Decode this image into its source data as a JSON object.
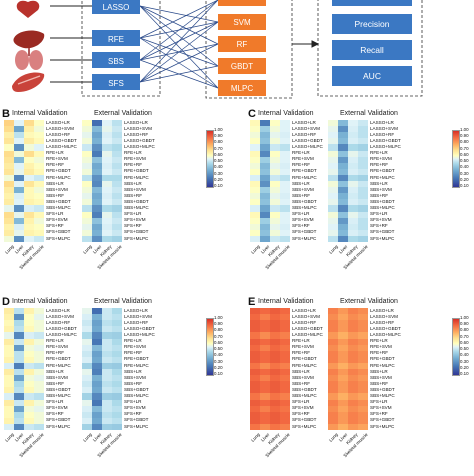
{
  "flow": {
    "methods": [
      "LASSO",
      "RFE",
      "SBS",
      "SFS"
    ],
    "models": [
      "SVM",
      "RF",
      "GBDT",
      "MLPC"
    ],
    "metrics": [
      "Precision",
      "Recall",
      "AUC"
    ]
  },
  "colorbar_ticks": [
    "1.00",
    "0.90",
    "0.80",
    "0.70",
    "0.60",
    "0.50",
    "0.40",
    "0.30",
    "0.20",
    "0.10"
  ],
  "chart_data": [
    {
      "type": "heatmap",
      "panel": "B",
      "titles": [
        "Internal Validation",
        "External Validation"
      ],
      "x": [
        "Lung",
        "Liver",
        "Kidney",
        "Skeletal muscle"
      ],
      "y": [
        "LASSO+LR",
        "LASSO+SVM",
        "LASSO+RF",
        "LASSO+GBDT",
        "LASSO+MLPC",
        "RFE+LR",
        "RFE+SVM",
        "RFE+RF",
        "RFE+GBDT",
        "RFE+MLPC",
        "SBS+LR",
        "SBS+SVM",
        "SBS+RF",
        "SBS+GBDT",
        "SBS+MLPC",
        "SFS+LR",
        "SFS+SVM",
        "SFS+RF",
        "SFS+GBDT",
        "SFS+MLPC"
      ],
      "vrange": [
        0.1,
        1.0
      ],
      "internal": [
        [
          0.72,
          0.55,
          0.7,
          0.6
        ],
        [
          0.7,
          0.35,
          0.65,
          0.58
        ],
        [
          0.65,
          0.5,
          0.62,
          0.6
        ],
        [
          0.68,
          0.55,
          0.66,
          0.62
        ],
        [
          0.6,
          0.3,
          0.58,
          0.55
        ],
        [
          0.7,
          0.58,
          0.7,
          0.62
        ],
        [
          0.68,
          0.4,
          0.6,
          0.58
        ],
        [
          0.66,
          0.55,
          0.64,
          0.6
        ],
        [
          0.68,
          0.56,
          0.66,
          0.62
        ],
        [
          0.58,
          0.28,
          0.55,
          0.52
        ],
        [
          0.7,
          0.55,
          0.68,
          0.62
        ],
        [
          0.66,
          0.38,
          0.62,
          0.58
        ],
        [
          0.64,
          0.54,
          0.62,
          0.6
        ],
        [
          0.66,
          0.55,
          0.64,
          0.62
        ],
        [
          0.56,
          0.3,
          0.54,
          0.52
        ],
        [
          0.7,
          0.56,
          0.68,
          0.62
        ],
        [
          0.68,
          0.4,
          0.64,
          0.58
        ],
        [
          0.64,
          0.54,
          0.62,
          0.6
        ],
        [
          0.66,
          0.56,
          0.64,
          0.62
        ],
        [
          0.58,
          0.3,
          0.55,
          0.52
        ]
      ],
      "external": [
        [
          0.6,
          0.22,
          0.55,
          0.5
        ],
        [
          0.58,
          0.4,
          0.56,
          0.52
        ],
        [
          0.56,
          0.35,
          0.54,
          0.5
        ],
        [
          0.58,
          0.38,
          0.55,
          0.52
        ],
        [
          0.52,
          0.3,
          0.5,
          0.48
        ],
        [
          0.6,
          0.25,
          0.56,
          0.5
        ],
        [
          0.58,
          0.42,
          0.55,
          0.52
        ],
        [
          0.56,
          0.36,
          0.54,
          0.5
        ],
        [
          0.58,
          0.38,
          0.55,
          0.52
        ],
        [
          0.5,
          0.3,
          0.48,
          0.48
        ],
        [
          0.6,
          0.28,
          0.56,
          0.5
        ],
        [
          0.58,
          0.4,
          0.55,
          0.52
        ],
        [
          0.56,
          0.36,
          0.54,
          0.5
        ],
        [
          0.58,
          0.38,
          0.55,
          0.52
        ],
        [
          0.5,
          0.3,
          0.48,
          0.46
        ],
        [
          0.6,
          0.26,
          0.56,
          0.5
        ],
        [
          0.58,
          0.42,
          0.55,
          0.52
        ],
        [
          0.56,
          0.36,
          0.54,
          0.5
        ],
        [
          0.58,
          0.38,
          0.55,
          0.52
        ],
        [
          0.5,
          0.3,
          0.48,
          0.46
        ]
      ]
    },
    {
      "type": "heatmap",
      "panel": "C",
      "titles": [
        "Internal Validation",
        "External Validation"
      ],
      "x": [
        "Lung",
        "Liver",
        "Kidney",
        "Skeletal muscle"
      ],
      "y": [
        "LASSO+LR",
        "LASSO+SVM",
        "LASSO+RF",
        "LASSO+GBDT",
        "LASSO+MLPC",
        "RFE+LR",
        "RFE+SVM",
        "RFE+RF",
        "RFE+GBDT",
        "RFE+MLPC",
        "SBS+LR",
        "SBS+SVM",
        "SBS+RF",
        "SBS+GBDT",
        "SBS+MLPC",
        "SFS+LR",
        "SFS+SVM",
        "SFS+RF",
        "SFS+GBDT",
        "SFS+MLPC"
      ],
      "vrange": [
        0.1,
        1.0
      ],
      "internal": [
        [
          0.62,
          0.25,
          0.6,
          0.55
        ],
        [
          0.6,
          0.45,
          0.58,
          0.55
        ],
        [
          0.58,
          0.4,
          0.56,
          0.54
        ],
        [
          0.6,
          0.42,
          0.58,
          0.55
        ],
        [
          0.55,
          0.35,
          0.52,
          0.5
        ],
        [
          0.62,
          0.28,
          0.6,
          0.55
        ],
        [
          0.6,
          0.45,
          0.58,
          0.55
        ],
        [
          0.58,
          0.4,
          0.56,
          0.54
        ],
        [
          0.6,
          0.42,
          0.58,
          0.55
        ],
        [
          0.54,
          0.35,
          0.52,
          0.5
        ],
        [
          0.62,
          0.3,
          0.6,
          0.55
        ],
        [
          0.6,
          0.45,
          0.58,
          0.55
        ],
        [
          0.58,
          0.4,
          0.56,
          0.54
        ],
        [
          0.6,
          0.42,
          0.58,
          0.55
        ],
        [
          0.54,
          0.35,
          0.52,
          0.5
        ],
        [
          0.62,
          0.28,
          0.6,
          0.55
        ],
        [
          0.6,
          0.45,
          0.58,
          0.55
        ],
        [
          0.58,
          0.4,
          0.56,
          0.54
        ],
        [
          0.6,
          0.42,
          0.58,
          0.55
        ],
        [
          0.54,
          0.35,
          0.52,
          0.5
        ]
      ],
      "external": [
        [
          0.58,
          0.4,
          0.55,
          0.52
        ],
        [
          0.56,
          0.3,
          0.54,
          0.5
        ],
        [
          0.55,
          0.38,
          0.53,
          0.5
        ],
        [
          0.56,
          0.4,
          0.54,
          0.52
        ],
        [
          0.5,
          0.28,
          0.48,
          0.46
        ],
        [
          0.58,
          0.42,
          0.56,
          0.52
        ],
        [
          0.56,
          0.32,
          0.54,
          0.5
        ],
        [
          0.55,
          0.38,
          0.53,
          0.5
        ],
        [
          0.56,
          0.4,
          0.54,
          0.52
        ],
        [
          0.5,
          0.28,
          0.48,
          0.46
        ],
        [
          0.58,
          0.42,
          0.56,
          0.52
        ],
        [
          0.56,
          0.32,
          0.54,
          0.5
        ],
        [
          0.55,
          0.38,
          0.53,
          0.5
        ],
        [
          0.56,
          0.4,
          0.54,
          0.52
        ],
        [
          0.5,
          0.28,
          0.48,
          0.46
        ],
        [
          0.58,
          0.42,
          0.56,
          0.52
        ],
        [
          0.56,
          0.32,
          0.54,
          0.5
        ],
        [
          0.55,
          0.38,
          0.53,
          0.5
        ],
        [
          0.56,
          0.4,
          0.54,
          0.52
        ],
        [
          0.5,
          0.28,
          0.48,
          0.46
        ]
      ]
    },
    {
      "type": "heatmap",
      "panel": "D",
      "titles": [
        "Internal Validation",
        "External Validation"
      ],
      "x": [
        "Lung",
        "Liver",
        "Kidney",
        "Skeletal muscle"
      ],
      "y": [
        "LASSO+LR",
        "LASSO+SVM",
        "LASSO+RF",
        "LASSO+GBDT",
        "LASSO+MLPC",
        "RFE+LR",
        "RFE+SVM",
        "RFE+RF",
        "RFE+GBDT",
        "RFE+MLPC",
        "SBS+LR",
        "SBS+SVM",
        "SBS+RF",
        "SBS+GBDT",
        "SBS+MLPC",
        "SFS+LR",
        "SFS+SVM",
        "SFS+RF",
        "SFS+GBDT",
        "SFS+MLPC"
      ],
      "vrange": [
        0.1,
        1.0
      ],
      "internal": [
        [
          0.66,
          0.5,
          0.64,
          0.58
        ],
        [
          0.64,
          0.3,
          0.6,
          0.56
        ],
        [
          0.62,
          0.48,
          0.6,
          0.58
        ],
        [
          0.64,
          0.5,
          0.62,
          0.58
        ],
        [
          0.56,
          0.28,
          0.54,
          0.52
        ],
        [
          0.66,
          0.52,
          0.64,
          0.58
        ],
        [
          0.62,
          0.32,
          0.58,
          0.56
        ],
        [
          0.62,
          0.5,
          0.6,
          0.58
        ],
        [
          0.64,
          0.5,
          0.62,
          0.58
        ],
        [
          0.54,
          0.26,
          0.52,
          0.5
        ],
        [
          0.66,
          0.5,
          0.64,
          0.58
        ],
        [
          0.62,
          0.34,
          0.58,
          0.56
        ],
        [
          0.62,
          0.48,
          0.6,
          0.58
        ],
        [
          0.64,
          0.5,
          0.62,
          0.58
        ],
        [
          0.54,
          0.28,
          0.52,
          0.5
        ],
        [
          0.66,
          0.52,
          0.64,
          0.58
        ],
        [
          0.62,
          0.34,
          0.58,
          0.56
        ],
        [
          0.62,
          0.48,
          0.6,
          0.58
        ],
        [
          0.64,
          0.5,
          0.62,
          0.58
        ],
        [
          0.54,
          0.28,
          0.52,
          0.5
        ]
      ],
      "external": [
        [
          0.56,
          0.22,
          0.52,
          0.48
        ],
        [
          0.54,
          0.38,
          0.52,
          0.5
        ],
        [
          0.52,
          0.34,
          0.5,
          0.48
        ],
        [
          0.54,
          0.36,
          0.52,
          0.5
        ],
        [
          0.48,
          0.28,
          0.46,
          0.45
        ],
        [
          0.56,
          0.24,
          0.52,
          0.48
        ],
        [
          0.54,
          0.4,
          0.52,
          0.5
        ],
        [
          0.52,
          0.34,
          0.5,
          0.48
        ],
        [
          0.54,
          0.36,
          0.52,
          0.5
        ],
        [
          0.46,
          0.28,
          0.45,
          0.44
        ],
        [
          0.56,
          0.26,
          0.52,
          0.48
        ],
        [
          0.54,
          0.38,
          0.52,
          0.5
        ],
        [
          0.52,
          0.34,
          0.5,
          0.48
        ],
        [
          0.54,
          0.36,
          0.52,
          0.5
        ],
        [
          0.46,
          0.28,
          0.45,
          0.44
        ],
        [
          0.56,
          0.24,
          0.52,
          0.48
        ],
        [
          0.54,
          0.4,
          0.52,
          0.5
        ],
        [
          0.52,
          0.34,
          0.5,
          0.48
        ],
        [
          0.54,
          0.36,
          0.52,
          0.5
        ],
        [
          0.46,
          0.28,
          0.45,
          0.44
        ]
      ]
    },
    {
      "type": "heatmap",
      "panel": "E",
      "titles": [
        "Internal Validation",
        "External Validation"
      ],
      "x": [
        "Lung",
        "Liver",
        "Kidney",
        "Skeletal muscle"
      ],
      "y": [
        "LASSO+LR",
        "LASSO+SVM",
        "LASSO+RF",
        "LASSO+GBDT",
        "LASSO+MLPC",
        "RFE+LR",
        "RFE+SVM",
        "RFE+RF",
        "RFE+GBDT",
        "RFE+MLPC",
        "SBS+LR",
        "SBS+SVM",
        "SBS+RF",
        "SBS+GBDT",
        "SBS+MLPC",
        "SFS+LR",
        "SFS+SVM",
        "SFS+RF",
        "SFS+GBDT",
        "SFS+MLPC"
      ],
      "vrange": [
        0.1,
        1.0
      ],
      "internal": [
        [
          0.92,
          0.9,
          0.92,
          0.9
        ],
        [
          0.9,
          0.86,
          0.9,
          0.88
        ],
        [
          0.92,
          0.9,
          0.92,
          0.9
        ],
        [
          0.92,
          0.9,
          0.92,
          0.9
        ],
        [
          0.88,
          0.84,
          0.88,
          0.86
        ],
        [
          0.92,
          0.9,
          0.92,
          0.9
        ],
        [
          0.9,
          0.86,
          0.9,
          0.88
        ],
        [
          0.92,
          0.9,
          0.92,
          0.9
        ],
        [
          0.92,
          0.9,
          0.92,
          0.9
        ],
        [
          0.88,
          0.84,
          0.88,
          0.86
        ],
        [
          0.92,
          0.9,
          0.92,
          0.9
        ],
        [
          0.9,
          0.86,
          0.9,
          0.88
        ],
        [
          0.92,
          0.9,
          0.92,
          0.9
        ],
        [
          0.92,
          0.9,
          0.92,
          0.9
        ],
        [
          0.88,
          0.84,
          0.88,
          0.86
        ],
        [
          0.92,
          0.9,
          0.92,
          0.9
        ],
        [
          0.9,
          0.86,
          0.9,
          0.88
        ],
        [
          0.92,
          0.9,
          0.92,
          0.9
        ],
        [
          0.92,
          0.9,
          0.92,
          0.9
        ],
        [
          0.88,
          0.84,
          0.88,
          0.86
        ]
      ],
      "external": [
        [
          0.86,
          0.82,
          0.86,
          0.84
        ],
        [
          0.84,
          0.8,
          0.84,
          0.82
        ],
        [
          0.86,
          0.82,
          0.86,
          0.84
        ],
        [
          0.86,
          0.82,
          0.86,
          0.84
        ],
        [
          0.82,
          0.78,
          0.82,
          0.8
        ],
        [
          0.86,
          0.82,
          0.86,
          0.84
        ],
        [
          0.84,
          0.8,
          0.84,
          0.82
        ],
        [
          0.86,
          0.82,
          0.86,
          0.84
        ],
        [
          0.86,
          0.82,
          0.86,
          0.84
        ],
        [
          0.82,
          0.78,
          0.82,
          0.8
        ],
        [
          0.86,
          0.82,
          0.86,
          0.84
        ],
        [
          0.84,
          0.8,
          0.84,
          0.82
        ],
        [
          0.86,
          0.82,
          0.86,
          0.84
        ],
        [
          0.86,
          0.82,
          0.86,
          0.84
        ],
        [
          0.82,
          0.78,
          0.82,
          0.8
        ],
        [
          0.86,
          0.82,
          0.86,
          0.84
        ],
        [
          0.84,
          0.8,
          0.84,
          0.82
        ],
        [
          0.86,
          0.82,
          0.86,
          0.84
        ],
        [
          0.86,
          0.82,
          0.86,
          0.84
        ],
        [
          0.82,
          0.78,
          0.82,
          0.8
        ]
      ]
    }
  ]
}
